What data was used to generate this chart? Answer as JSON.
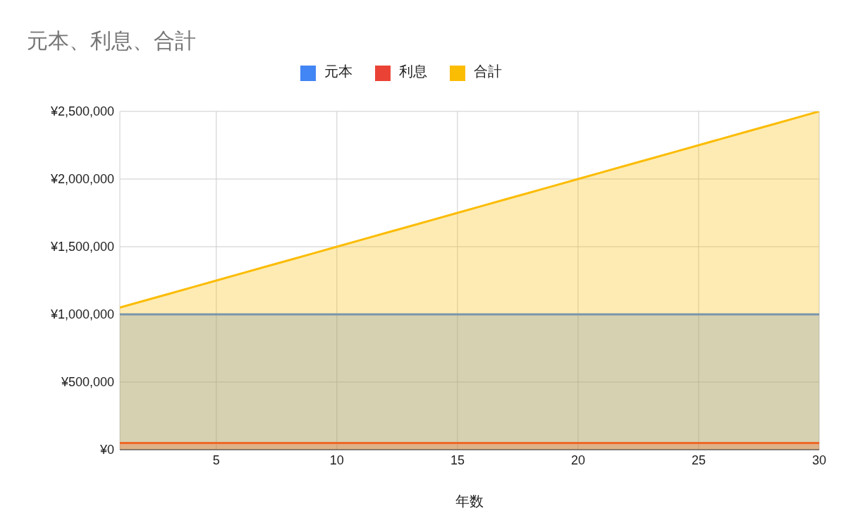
{
  "chart_data": {
    "type": "area",
    "title": "元本、利息、合計",
    "xlabel": "年数",
    "x": [
      1,
      2,
      3,
      4,
      5,
      6,
      7,
      8,
      9,
      10,
      11,
      12,
      13,
      14,
      15,
      16,
      17,
      18,
      19,
      20,
      21,
      22,
      23,
      24,
      25,
      26,
      27,
      28,
      29,
      30
    ],
    "series": [
      {
        "name": "元本",
        "color": "#4285f4",
        "values": [
          1000000,
          1000000,
          1000000,
          1000000,
          1000000,
          1000000,
          1000000,
          1000000,
          1000000,
          1000000,
          1000000,
          1000000,
          1000000,
          1000000,
          1000000,
          1000000,
          1000000,
          1000000,
          1000000,
          1000000,
          1000000,
          1000000,
          1000000,
          1000000,
          1000000,
          1000000,
          1000000,
          1000000,
          1000000,
          1000000
        ]
      },
      {
        "name": "利息",
        "color": "#ea4335",
        "values": [
          50000,
          50000,
          50000,
          50000,
          50000,
          50000,
          50000,
          50000,
          50000,
          50000,
          50000,
          50000,
          50000,
          50000,
          50000,
          50000,
          50000,
          50000,
          50000,
          50000,
          50000,
          50000,
          50000,
          50000,
          50000,
          50000,
          50000,
          50000,
          50000,
          50000
        ]
      },
      {
        "name": "合計",
        "color": "#fbbc04",
        "values": [
          1050000,
          1100000,
          1150000,
          1200000,
          1250000,
          1300000,
          1350000,
          1400000,
          1450000,
          1500000,
          1550000,
          1600000,
          1650000,
          1700000,
          1750000,
          1800000,
          1850000,
          1900000,
          1950000,
          2000000,
          2050000,
          2100000,
          2150000,
          2200000,
          2250000,
          2300000,
          2350000,
          2400000,
          2450000,
          2500000
        ]
      }
    ],
    "xlim": [
      1,
      30
    ],
    "xticks": [
      5,
      10,
      15,
      20,
      25,
      30
    ],
    "ylim": [
      0,
      2500000
    ],
    "yticks": [
      {
        "value": 0,
        "label": "¥0"
      },
      {
        "value": 500000,
        "label": "¥500,000"
      },
      {
        "value": 1000000,
        "label": "¥1,000,000"
      },
      {
        "value": 1500000,
        "label": "¥1,500,000"
      },
      {
        "value": 2000000,
        "label": "¥2,000,000"
      },
      {
        "value": 2500000,
        "label": "¥2,500,000"
      }
    ],
    "grid": true,
    "legend": "top",
    "marker": "none"
  }
}
